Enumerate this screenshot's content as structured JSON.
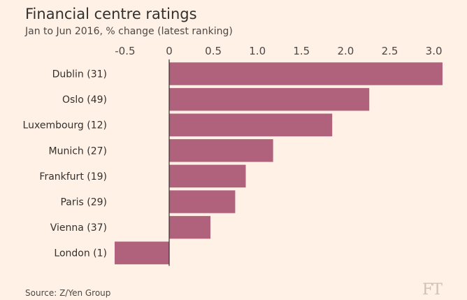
{
  "title": "Financial centre ratings",
  "subtitle": "Jan to Jun 2016, % change (latest ranking)",
  "source": "Source: Z/Yen Group",
  "logo": "FT",
  "colors": {
    "background": "#fff1e5",
    "bar": "#b0627d",
    "text": "#33302e",
    "axis": "#33302e"
  },
  "chart_data": {
    "type": "bar",
    "orientation": "horizontal",
    "title": "Financial centre ratings",
    "subtitle": "Jan to Jun 2016, % change (latest ranking)",
    "categories": [
      "Dublin (31)",
      "Oslo (49)",
      "Luxembourg (12)",
      "Munich (27)",
      "Frankfurt (19)",
      "Paris (29)",
      "Vienna (37)",
      "London (1)"
    ],
    "values": [
      3.1,
      2.27,
      1.85,
      1.18,
      0.87,
      0.75,
      0.47,
      -0.62
    ],
    "xlim": [
      -0.6,
      3.1
    ],
    "xticks": [
      -0.5,
      0,
      0.5,
      1.0,
      1.5,
      2.0,
      2.5,
      3.0
    ],
    "xtick_labels": [
      "-0.5",
      "0",
      "0.5",
      "1.0",
      "1.5",
      "2.0",
      "2.5",
      "3.0"
    ],
    "axis_position": "top",
    "grid": false
  }
}
